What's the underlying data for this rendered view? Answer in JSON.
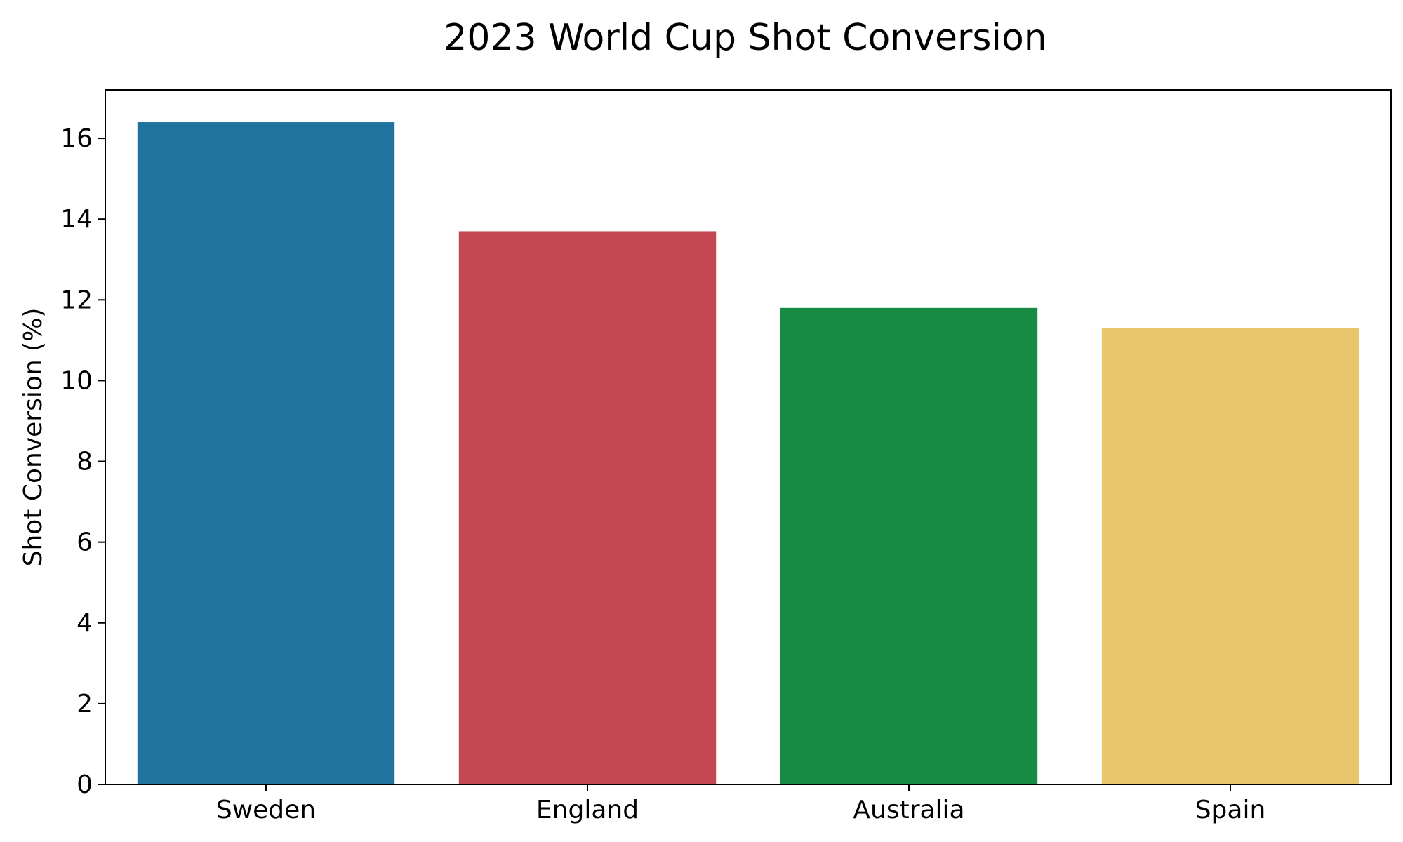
{
  "chart_data": {
    "type": "bar",
    "title": "2023 World Cup Shot Conversion",
    "xlabel": "",
    "ylabel": "Shot Conversion (%)",
    "categories": [
      "Sweden",
      "England",
      "Australia",
      "Spain"
    ],
    "values": [
      16.4,
      13.7,
      11.8,
      11.3
    ],
    "colors": [
      "#1f739d",
      "#c44854",
      "#178a43",
      "#e9c66b"
    ],
    "ylim": [
      0,
      17.2
    ],
    "yticks": [
      0,
      2,
      4,
      6,
      8,
      10,
      12,
      14,
      16
    ],
    "grid": false,
    "legend": "none"
  }
}
